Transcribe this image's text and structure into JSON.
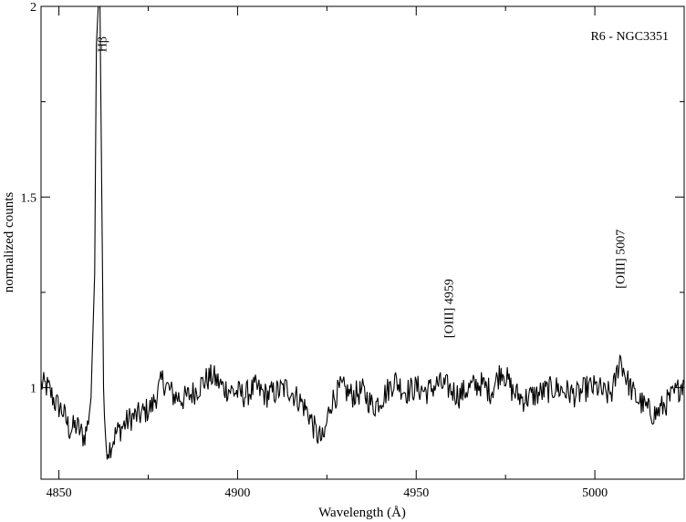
{
  "chart_data": {
    "type": "line",
    "title": "R6 - NGC3351",
    "xlabel": "Wavelength  (Å)",
    "ylabel": "normalized counts",
    "xlim": [
      4845,
      5025
    ],
    "ylim": [
      0.76,
      2.0
    ],
    "xticks": [
      4850,
      4900,
      4950,
      5000
    ],
    "xtick_labels": [
      "4850",
      "4900",
      "4950",
      "5000"
    ],
    "yticks": [
      1,
      1.5,
      2
    ],
    "ytick_labels": [
      "1",
      "1.5",
      "2"
    ],
    "grid": false,
    "line_color": "#000000",
    "annotations": [
      {
        "text": "Hβ",
        "x": 4862,
        "y": 1.88
      },
      {
        "text": "[OIII] 4959",
        "x": 4959,
        "y": 1.13
      },
      {
        "text": "[OIII] 5007",
        "x": 5007,
        "y": 1.26
      }
    ],
    "series": [
      {
        "x": [
          4845,
          4847,
          4849,
          4851,
          4853,
          4855,
          4857,
          4858,
          4859,
          4860,
          4860.5,
          4861,
          4861.5,
          4862,
          4862.5,
          4863,
          4864,
          4866,
          4868,
          4870,
          4873,
          4876,
          4879,
          4882,
          4885,
          4888,
          4891,
          4893,
          4896,
          4899,
          4902,
          4905,
          4908,
          4911,
          4914,
          4916,
          4918,
          4920,
          4922,
          4924,
          4926,
          4929,
          4932,
          4935,
          4938,
          4941,
          4944,
          4947,
          4950,
          4953,
          4956,
          4959,
          4962,
          4965,
          4968,
          4971,
          4974,
          4977,
          4980,
          4983,
          4986,
          4989,
          4992,
          4995,
          4998,
          5001,
          5003,
          5005,
          5006,
          5007,
          5008,
          5009,
          5011,
          5013,
          5015,
          5017,
          5019,
          5021,
          5023,
          5025
        ],
        "y": [
          1.01,
          1.0,
          0.96,
          0.94,
          0.89,
          0.9,
          0.87,
          0.9,
          0.98,
          1.3,
          1.9,
          2.0,
          2.0,
          1.5,
          1.0,
          0.85,
          0.84,
          0.88,
          0.9,
          0.92,
          0.93,
          0.95,
          1.02,
          0.98,
          0.97,
          0.99,
          1.02,
          1.03,
          1.0,
          0.99,
          0.98,
          1.0,
          0.98,
          0.99,
          1.0,
          0.98,
          0.96,
          0.93,
          0.88,
          0.86,
          0.96,
          1.0,
          0.98,
          0.99,
          0.95,
          0.98,
          1.02,
          0.99,
          1.0,
          0.99,
          1.01,
          1.0,
          0.98,
          1.0,
          1.01,
          0.99,
          1.05,
          0.99,
          0.97,
          0.98,
          0.99,
          1.0,
          0.99,
          0.98,
          1.0,
          1.0,
          0.98,
          0.99,
          1.03,
          1.08,
          1.05,
          1.02,
          0.98,
          0.96,
          0.94,
          0.93,
          0.95,
          0.97,
          0.99,
          1.02
        ]
      }
    ]
  }
}
